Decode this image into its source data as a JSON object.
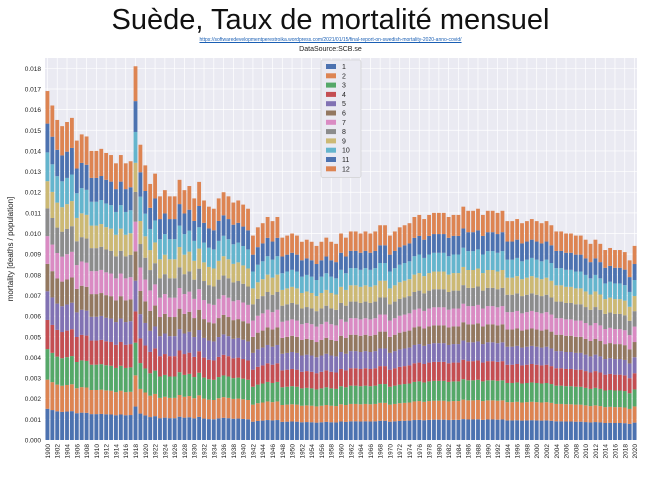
{
  "header": {
    "title": "Suède, Taux de mortalité mensuel",
    "link": "https://softwaredevelopmentperestroika.wordpress.com/2021/01/15/final-report-on-swedish-mortality-2020-anno-covid/"
  },
  "chart_data": {
    "type": "bar",
    "stacked": true,
    "title": "DataSource:SCB.se",
    "ylabel": "mortality [deaths / population]",
    "xlabel": "",
    "ylim": [
      0,
      0.0185
    ],
    "yticks": [
      "0.000",
      "0.001",
      "0.002",
      "0.003",
      "0.004",
      "0.005",
      "0.006",
      "0.007",
      "0.008",
      "0.009",
      "0.010",
      "0.011",
      "0.012",
      "0.013",
      "0.014",
      "0.015",
      "0.016",
      "0.017",
      "0.018"
    ],
    "xticks": [
      "1900",
      "1902",
      "1904",
      "1906",
      "1908",
      "1910",
      "1912",
      "1914",
      "1916",
      "1918",
      "1920",
      "1922",
      "1924",
      "1926",
      "1928",
      "1930",
      "1932",
      "1934",
      "1936",
      "1938",
      "1940",
      "1942",
      "1944",
      "1946",
      "1948",
      "1950",
      "1952",
      "1954",
      "1956",
      "1958",
      "1960",
      "1962",
      "1964",
      "1966",
      "1968",
      "1970",
      "1972",
      "1974",
      "1976",
      "1978",
      "1980",
      "1982",
      "1984",
      "1986",
      "1988",
      "1990",
      "1992",
      "1994",
      "1996",
      "1998",
      "2000",
      "2002",
      "2004",
      "2006",
      "2008",
      "2010",
      "2012",
      "2014",
      "2016",
      "2018",
      "2020"
    ],
    "x_start": 1900,
    "x_end": 2020,
    "grid": true,
    "legend_position": "top-center",
    "series_names": [
      "1",
      "2",
      "3",
      "4",
      "5",
      "6",
      "7",
      "8",
      "9",
      "10",
      "11",
      "12"
    ],
    "series_colors": [
      "#4c72b0",
      "#dd8452",
      "#55a868",
      "#c44e52",
      "#8172b3",
      "#937860",
      "#da8bc3",
      "#8c8c8c",
      "#ccb974",
      "#64b5cd",
      "#4c72b0",
      "#dd8452"
    ],
    "annual_totals": {
      "1900": 0.0169,
      "1901": 0.0162,
      "1902": 0.0155,
      "1903": 0.0152,
      "1904": 0.0154,
      "1905": 0.0156,
      "1906": 0.0145,
      "1907": 0.0148,
      "1908": 0.0147,
      "1909": 0.014,
      "1910": 0.014,
      "1911": 0.0141,
      "1912": 0.0139,
      "1913": 0.0138,
      "1914": 0.0134,
      "1915": 0.0138,
      "1916": 0.0134,
      "1917": 0.0135,
      "1918": 0.0181,
      "1919": 0.0143,
      "1920": 0.0133,
      "1921": 0.0124,
      "1922": 0.0129,
      "1923": 0.0118,
      "1924": 0.0121,
      "1925": 0.0118,
      "1926": 0.0118,
      "1927": 0.0126,
      "1928": 0.0121,
      "1929": 0.0123,
      "1930": 0.0117,
      "1931": 0.0125,
      "1932": 0.0116,
      "1933": 0.0113,
      "1934": 0.0112,
      "1935": 0.0117,
      "1936": 0.012,
      "1937": 0.0118,
      "1938": 0.0115,
      "1939": 0.0116,
      "1940": 0.0114,
      "1941": 0.0112,
      "1942": 0.0099,
      "1943": 0.0103,
      "1944": 0.0105,
      "1945": 0.0108,
      "1946": 0.0106,
      "1947": 0.0108,
      "1948": 0.0098,
      "1949": 0.0099,
      "1950": 0.01,
      "1951": 0.0099,
      "1952": 0.0096,
      "1953": 0.0097,
      "1954": 0.0096,
      "1955": 0.0094,
      "1956": 0.0096,
      "1957": 0.0098,
      "1958": 0.0096,
      "1959": 0.0095,
      "1960": 0.01,
      "1961": 0.0098,
      "1962": 0.0101,
      "1963": 0.0101,
      "1964": 0.01,
      "1965": 0.0101,
      "1966": 0.01,
      "1967": 0.0101,
      "1968": 0.0104,
      "1969": 0.0104,
      "1970": 0.0099,
      "1971": 0.0101,
      "1972": 0.0103,
      "1973": 0.0104,
      "1974": 0.0105,
      "1975": 0.0108,
      "1976": 0.0109,
      "1977": 0.0107,
      "1978": 0.0109,
      "1979": 0.011,
      "1980": 0.011,
      "1981": 0.011,
      "1982": 0.0108,
      "1983": 0.0109,
      "1984": 0.0109,
      "1985": 0.0113,
      "1986": 0.0111,
      "1987": 0.0111,
      "1988": 0.0112,
      "1989": 0.0109,
      "1990": 0.0111,
      "1991": 0.0111,
      "1992": 0.011,
      "1993": 0.0111,
      "1994": 0.0106,
      "1995": 0.0106,
      "1996": 0.0107,
      "1997": 0.0105,
      "1998": 0.0106,
      "1999": 0.0107,
      "2000": 0.0106,
      "2001": 0.0105,
      "2002": 0.0106,
      "2003": 0.0104,
      "2004": 0.0101,
      "2005": 0.0101,
      "2006": 0.01,
      "2007": 0.01,
      "2008": 0.0099,
      "2009": 0.0099,
      "2010": 0.0097,
      "2011": 0.0095,
      "2012": 0.0097,
      "2013": 0.0095,
      "2014": 0.0092,
      "2015": 0.0093,
      "2016": 0.0092,
      "2017": 0.0092,
      "2018": 0.0091,
      "2019": 0.0087,
      "2020": 0.0094
    },
    "monthly_share": [
      0.0895,
      0.0835,
      0.0875,
      0.0835,
      0.0822,
      0.0785,
      0.0795,
      0.0795,
      0.078,
      0.0825,
      0.0825,
      0.0933
    ]
  }
}
